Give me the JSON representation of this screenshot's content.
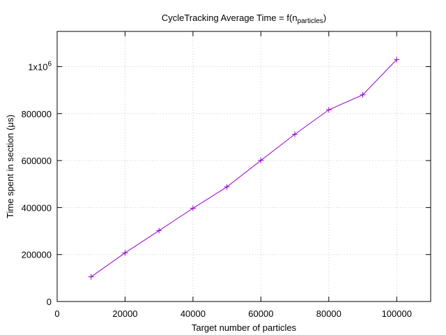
{
  "chart_data": {
    "type": "line",
    "title": {
      "main": "CycleTracking Average Time = f(n",
      "sub": "particles",
      "close": ")"
    },
    "xlabel": "Target number of particles",
    "ylabel": "Time spent in section (μs)",
    "xlim": [
      0,
      110000
    ],
    "ylim": [
      0,
      1150000
    ],
    "x_ticks": [
      {
        "value": 0,
        "label": "0"
      },
      {
        "value": 20000,
        "label": "20000"
      },
      {
        "value": 40000,
        "label": "40000"
      },
      {
        "value": 60000,
        "label": "60000"
      },
      {
        "value": 80000,
        "label": "80000"
      },
      {
        "value": 100000,
        "label": "100000"
      }
    ],
    "y_ticks": [
      {
        "value": 0,
        "label": "0"
      },
      {
        "value": 200000,
        "label": "200000"
      },
      {
        "value": 400000,
        "label": "400000"
      },
      {
        "value": 600000,
        "label": "600000"
      },
      {
        "value": 800000,
        "label": "800000"
      },
      {
        "value": 1000000,
        "label": "1x10",
        "sup": "6"
      }
    ],
    "grid": true,
    "series": [
      {
        "color": "#9400d3",
        "marker": "+",
        "x": [
          10000,
          20000,
          30000,
          40000,
          50000,
          60000,
          70000,
          80000,
          90000,
          100000
        ],
        "y": [
          105000,
          207000,
          302000,
          397000,
          488000,
          601000,
          712000,
          816000,
          880000,
          1030000
        ]
      }
    ]
  }
}
